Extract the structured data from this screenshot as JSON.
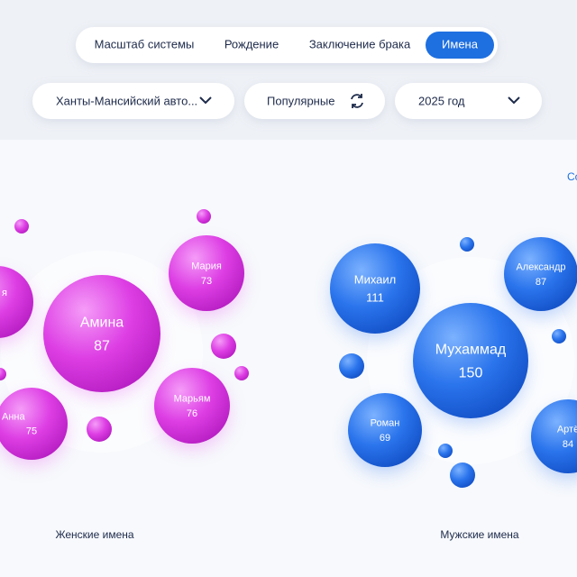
{
  "tabs": [
    "Масштаб системы",
    "Рождение",
    "Заключение брака",
    "Имена"
  ],
  "filters": [
    "Ханты-Мансийский авто...",
    "Популярные",
    "2025 год"
  ],
  "sort_link": "Со",
  "female": {
    "caption": "Женские имена",
    "bubbles": [
      {
        "name": "я"
      },
      {
        "name": "Амина",
        "count": "87"
      },
      {
        "name": "Мария",
        "count": "73"
      },
      {
        "name": "Анна",
        "count": "75"
      },
      {
        "name": "Марьям",
        "count": "76"
      }
    ]
  },
  "male": {
    "caption": "Мужские имена",
    "bubbles": [
      {
        "name": "Михаил",
        "count": "111"
      },
      {
        "name": "Мухаммад",
        "count": "150"
      },
      {
        "name": "Александр",
        "count": "87"
      },
      {
        "name": "Роман",
        "count": "69"
      },
      {
        "name": "Артё",
        "count": "84"
      }
    ]
  }
}
